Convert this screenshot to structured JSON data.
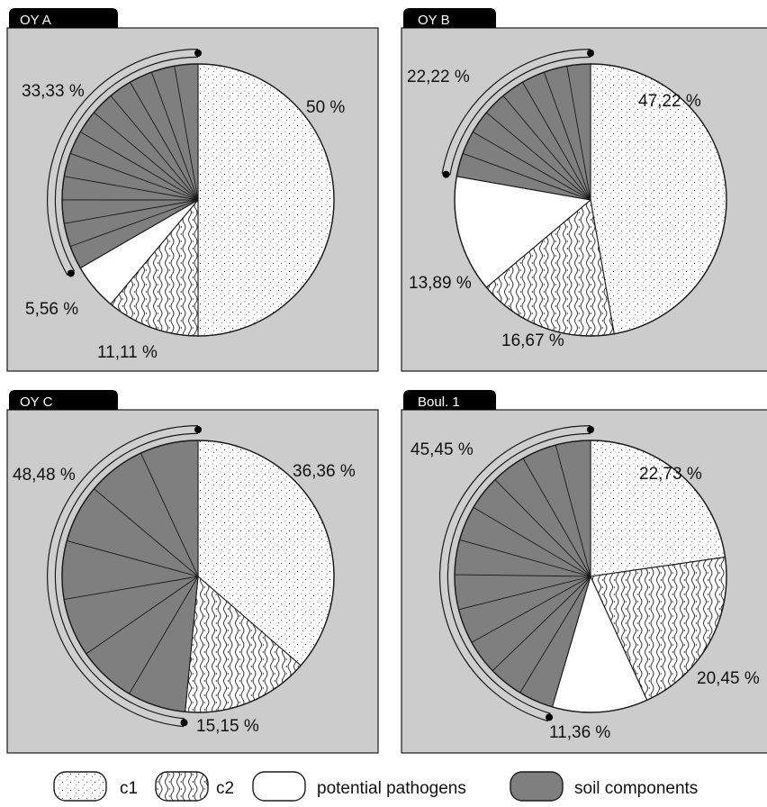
{
  "colors": {
    "panel_bg": "#cccccc",
    "tab_bg": "#000000",
    "c1": "#ffffff",
    "c2": "#ffffff",
    "potential_pathogens": "#ffffff",
    "soil_components": "#7f7f7f",
    "outline": "#1a1a1a"
  },
  "legend": [
    {
      "key": "c1",
      "label": "c1",
      "pattern": "dots"
    },
    {
      "key": "c2",
      "label": "c2",
      "pattern": "waves"
    },
    {
      "key": "potential_pathogens",
      "label": "potential pathogens",
      "pattern": "white"
    },
    {
      "key": "soil_components",
      "label": "soil components",
      "pattern": "gray"
    }
  ],
  "chart_data": [
    {
      "type": "pie",
      "title": "OY A",
      "slices": [
        {
          "category": "c1",
          "value": 50,
          "label": "50 %"
        },
        {
          "category": "c2",
          "value": 11.11,
          "label": "11,11 %"
        },
        {
          "category": "potential_pathogens",
          "value": 5.56,
          "label": "5,56 %"
        },
        {
          "category": "soil_components",
          "value": 33.33,
          "label": "33,33 %",
          "subdivisions": 12
        }
      ]
    },
    {
      "type": "pie",
      "title": "OY B",
      "slices": [
        {
          "category": "c1",
          "value": 47.22,
          "label": "47,22 %"
        },
        {
          "category": "c2",
          "value": 16.67,
          "label": "16,67 %"
        },
        {
          "category": "potential_pathogens",
          "value": 13.89,
          "label": "13,89 %"
        },
        {
          "category": "soil_components",
          "value": 22.22,
          "label": "22,22 %",
          "subdivisions": 8
        }
      ]
    },
    {
      "type": "pie",
      "title": "OY C",
      "slices": [
        {
          "category": "c1",
          "value": 36.36,
          "label": "36,36 %"
        },
        {
          "category": "c2",
          "value": 15.15,
          "label": "15,15 %"
        },
        {
          "category": "soil_components",
          "value": 48.48,
          "label": "48,48 %",
          "subdivisions": 7
        }
      ]
    },
    {
      "type": "pie",
      "title": "Boul. 1",
      "slices": [
        {
          "category": "c1",
          "value": 22.73,
          "label": "22,73 %"
        },
        {
          "category": "c2",
          "value": 20.45,
          "label": "20,45 %"
        },
        {
          "category": "potential_pathogens",
          "value": 11.36,
          "label": "11,36 %"
        },
        {
          "category": "soil_components",
          "value": 45.45,
          "label": "45,45 %",
          "subdivisions": 11
        }
      ]
    }
  ]
}
